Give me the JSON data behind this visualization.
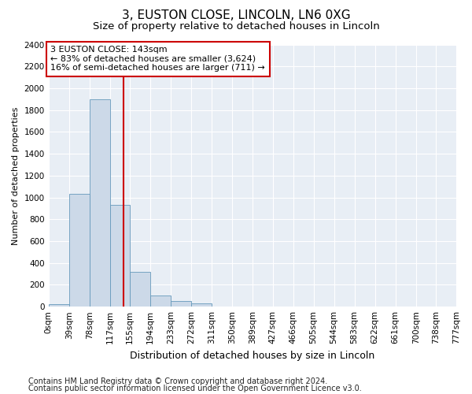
{
  "title": "3, EUSTON CLOSE, LINCOLN, LN6 0XG",
  "subtitle": "Size of property relative to detached houses in Lincoln",
  "xlabel": "Distribution of detached houses by size in Lincoln",
  "ylabel": "Number of detached properties",
  "footer_line1": "Contains HM Land Registry data © Crown copyright and database right 2024.",
  "footer_line2": "Contains public sector information licensed under the Open Government Licence v3.0.",
  "annotation_line1": "3 EUSTON CLOSE: 143sqm",
  "annotation_line2": "← 83% of detached houses are smaller (3,624)",
  "annotation_line3": "16% of semi-detached houses are larger (711) →",
  "bin_edges": [
    0,
    39,
    78,
    117,
    155,
    194,
    233,
    272,
    311,
    350,
    389,
    427,
    466,
    505,
    544,
    583,
    622,
    661,
    700,
    738,
    777
  ],
  "bin_labels": [
    "0sqm",
    "39sqm",
    "78sqm",
    "117sqm",
    "155sqm",
    "194sqm",
    "233sqm",
    "272sqm",
    "311sqm",
    "350sqm",
    "389sqm",
    "427sqm",
    "466sqm",
    "505sqm",
    "544sqm",
    "583sqm",
    "622sqm",
    "661sqm",
    "700sqm",
    "738sqm",
    "777sqm"
  ],
  "bar_heights": [
    20,
    1030,
    1900,
    930,
    320,
    105,
    50,
    30,
    0,
    0,
    0,
    0,
    0,
    0,
    0,
    0,
    0,
    0,
    0,
    0
  ],
  "bar_color": "#ccd9e8",
  "bar_edge_color": "#6699bb",
  "vline_color": "#cc0000",
  "vline_x": 143,
  "ylim": [
    0,
    2400
  ],
  "yticks": [
    0,
    200,
    400,
    600,
    800,
    1000,
    1200,
    1400,
    1600,
    1800,
    2000,
    2200,
    2400
  ],
  "bg_color": "#e8eef5",
  "grid_color": "#ffffff",
  "annotation_box_facecolor": "#ffffff",
  "annotation_box_edgecolor": "#cc0000",
  "title_fontsize": 11,
  "subtitle_fontsize": 9.5,
  "xlabel_fontsize": 9,
  "ylabel_fontsize": 8,
  "tick_fontsize": 7.5,
  "annotation_fontsize": 8,
  "footer_fontsize": 7
}
